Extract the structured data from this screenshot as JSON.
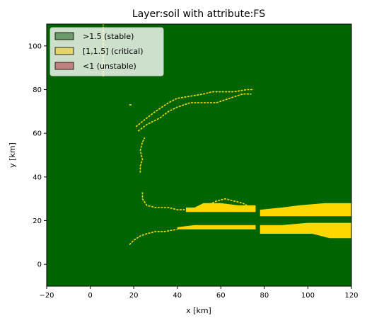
{
  "chart_data": {
    "type": "heatmap",
    "title": "Layer:soil with attribute:FS",
    "xlabel": "x [km]",
    "ylabel": "y [km]",
    "xlim": [
      -20,
      120
    ],
    "ylim": [
      -10,
      110
    ],
    "xticks": [
      -20,
      0,
      20,
      40,
      60,
      80,
      100,
      120
    ],
    "yticks": [
      0,
      20,
      40,
      60,
      80,
      100
    ],
    "legend_position": "top-left",
    "classes": [
      {
        "label": ">1.5 (stable)",
        "color": "#006400",
        "swatch": "#6b9a6b"
      },
      {
        "label": "[1,1.5] (critical)",
        "color": "#ffd700",
        "swatch": "#e3d56a"
      },
      {
        "label": "<1 (unstable)",
        "color": "#b22222",
        "swatch": "#c08080"
      }
    ],
    "background_class": ">1.5 (stable)",
    "critical_regions": [
      {
        "name": "upper-band",
        "points": [
          [
            78,
            22
          ],
          [
            120,
            22
          ],
          [
            120,
            28
          ],
          [
            108,
            28
          ],
          [
            96,
            27
          ],
          [
            88,
            26
          ],
          [
            78,
            25
          ]
        ]
      },
      {
        "name": "upper-band-mid",
        "points": [
          [
            44,
            24
          ],
          [
            76,
            24
          ],
          [
            76,
            27
          ],
          [
            68,
            27
          ],
          [
            60,
            28
          ],
          [
            52,
            28
          ],
          [
            48,
            26
          ],
          [
            44,
            26
          ]
        ]
      },
      {
        "name": "lower-band",
        "points": [
          [
            78,
            14
          ],
          [
            102,
            14
          ],
          [
            110,
            12
          ],
          [
            120,
            12
          ],
          [
            120,
            19
          ],
          [
            100,
            19
          ],
          [
            88,
            18
          ],
          [
            78,
            18
          ]
        ]
      },
      {
        "name": "lower-band-mid",
        "points": [
          [
            40,
            16
          ],
          [
            76,
            16
          ],
          [
            76,
            18
          ],
          [
            60,
            18
          ],
          [
            48,
            18
          ],
          [
            40,
            17
          ]
        ]
      }
    ],
    "critical_lines": [
      {
        "name": "upper-arc-1",
        "points": [
          [
            21,
            63
          ],
          [
            26,
            67
          ],
          [
            30,
            70
          ],
          [
            36,
            74
          ],
          [
            40,
            76
          ],
          [
            46,
            77
          ],
          [
            52,
            78
          ],
          [
            56,
            79
          ],
          [
            60,
            79
          ],
          [
            66,
            79
          ],
          [
            72,
            80
          ],
          [
            75,
            80
          ]
        ]
      },
      {
        "name": "upper-arc-2",
        "points": [
          [
            22,
            61
          ],
          [
            26,
            64
          ],
          [
            32,
            67
          ],
          [
            36,
            70
          ],
          [
            40,
            72
          ],
          [
            46,
            74
          ],
          [
            52,
            74
          ],
          [
            58,
            74
          ],
          [
            64,
            76
          ],
          [
            70,
            78
          ],
          [
            74,
            78
          ]
        ]
      },
      {
        "name": "left-stroke",
        "points": [
          [
            23,
            42
          ],
          [
            23,
            45
          ],
          [
            24,
            48
          ],
          [
            23,
            52
          ],
          [
            24,
            56
          ],
          [
            25,
            58
          ]
        ]
      },
      {
        "name": "upper-band-left",
        "points": [
          [
            24,
            33
          ],
          [
            24,
            30
          ],
          [
            26,
            27
          ],
          [
            30,
            26
          ],
          [
            36,
            26
          ],
          [
            40,
            25
          ],
          [
            44,
            25
          ]
        ]
      },
      {
        "name": "lower-band-left",
        "points": [
          [
            18,
            9
          ],
          [
            20,
            11
          ],
          [
            23,
            13
          ],
          [
            26,
            14
          ],
          [
            30,
            15
          ],
          [
            34,
            15
          ],
          [
            40,
            16
          ]
        ]
      },
      {
        "name": "top-stroke",
        "points": [
          [
            6,
            86
          ],
          [
            6,
            92
          ],
          [
            6,
            98
          ],
          [
            6,
            104
          ],
          [
            6,
            110
          ]
        ]
      },
      {
        "name": "speck",
        "points": [
          [
            18,
            73
          ],
          [
            19,
            73
          ]
        ]
      },
      {
        "name": "upper-band-tail",
        "points": [
          [
            56,
            28
          ],
          [
            58,
            29
          ],
          [
            62,
            30
          ],
          [
            66,
            29
          ],
          [
            70,
            28
          ],
          [
            72,
            27
          ]
        ]
      }
    ]
  }
}
